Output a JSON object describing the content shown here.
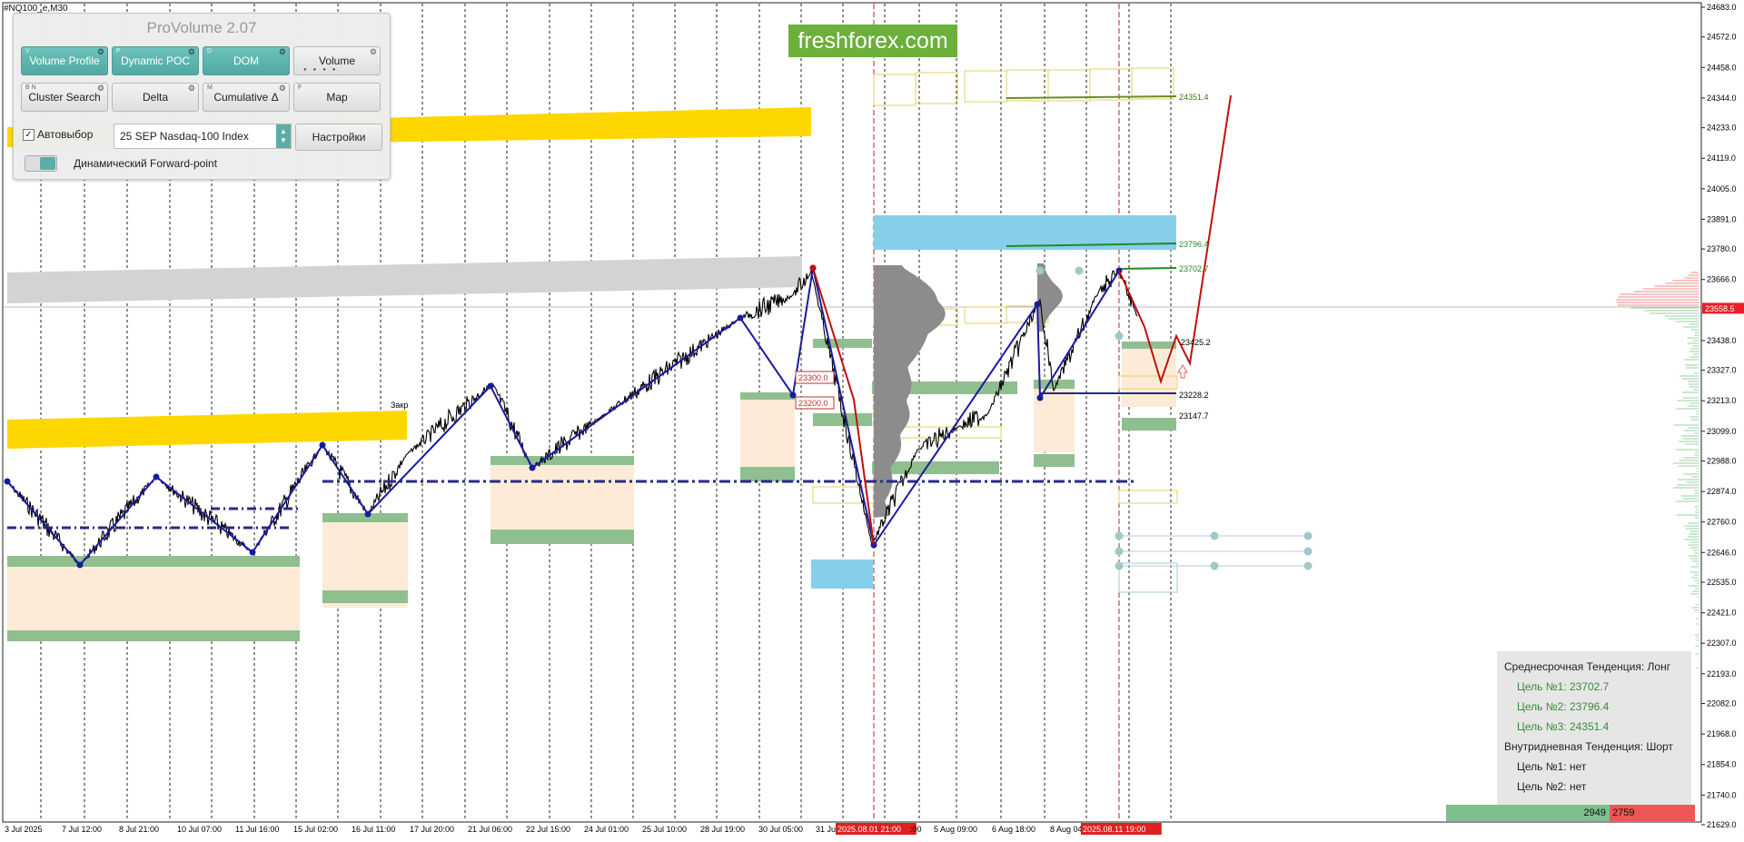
{
  "symbol_label": "#NQ100_e,M30",
  "logo_text": "freshforex.com",
  "panel": {
    "title": "ProVolume 2.07",
    "buttons": [
      {
        "label": "Volume Profile",
        "key": "V",
        "active": true
      },
      {
        "label": "Dynamic POC",
        "key": "P",
        "active": true
      },
      {
        "label": "DOM",
        "key": "D",
        "active": true
      },
      {
        "label": "Volume",
        "key": "",
        "active": false
      },
      {
        "label": "Cluster Search",
        "key": "B N",
        "active": false
      },
      {
        "label": "Delta",
        "key": "",
        "active": false
      },
      {
        "label": "Cumulative Δ",
        "key": "M",
        "active": false
      },
      {
        "label": "Map",
        "key": "F",
        "active": false
      }
    ],
    "autoselect_label": "Автовыбор",
    "instrument_value": "25 SEP Nasdaq-100 Index",
    "settings_label": "Настройки",
    "forward_point_label": "Динамический Forward-point",
    "accent_color": "#4fa9a2"
  },
  "price_axis": {
    "ticks": [
      "24683.0",
      "24572.0",
      "24458.0",
      "24344.0",
      "24233.0",
      "24119.0",
      "24005.0",
      "23891.0",
      "23780.0",
      "23666.0",
      "23558.5",
      "23438.0",
      "23327.0",
      "23213.0",
      "23099.0",
      "22988.0",
      "22874.0",
      "22760.0",
      "22646.0",
      "22535.0",
      "22421.0",
      "22307.0",
      "22193.0",
      "22082.0",
      "21968.0",
      "21854.0",
      "21740.0",
      "21629.0"
    ],
    "current_price": "23558.5",
    "current_price_color": "#e8202a"
  },
  "time_axis": {
    "labels": [
      "3 Jul 2025",
      "7 Jul 12:00",
      "8 Jul 21:00",
      "10 Jul 07:00",
      "11 Jul 16:00",
      "15 Jul 02:00",
      "16 Jul 11:00",
      "17 Jul 20:00",
      "21 Jul 06:00",
      "22 Jul 15:00",
      "24 Jul 01:00",
      "25 Jul 10:00",
      "28 Jul 19:00",
      "30 Jul 05:00",
      "31 Ju",
      "2025.08.01 21:00",
      ":00",
      "5 Aug 09:00",
      "6 Aug 18:00",
      "8 Aug 04",
      "2025.08.11 19:00"
    ]
  },
  "levels": {
    "l24351": "24351.4",
    "l23796": "23796.4",
    "l23702": "23702.7",
    "l23425": "23425.2",
    "l23228": "23228.2",
    "l23147": "23147.7",
    "l23300a": "23300.0",
    "l23200": "23200.0",
    "zakr": "Закр"
  },
  "trend": {
    "midterm_title": "Среднесрочная Тенденция: Лонг",
    "midterm_targets": [
      "Цель №1: 23702.7",
      "Цель №2: 23796.4",
      "Цель №3: 24351.4"
    ],
    "intraday_title": "Внутридневная Тенденция: Шорт",
    "intraday_targets": [
      "Цель №1: нет",
      "Цель №2: нет"
    ]
  },
  "volume_bar": {
    "buy": "2949",
    "sell": "2759",
    "buy_color": "#7fbe8d",
    "sell_color": "#f05555"
  }
}
